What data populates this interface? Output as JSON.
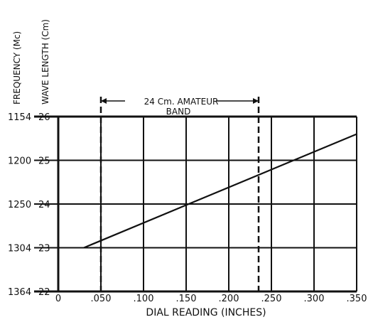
{
  "chart_data": {
    "type": "line",
    "title": "",
    "xlabel": "DIAL READING (INCHES)",
    "ylabel_left": "FREQUENCY (Mc)",
    "ylabel_right": "WAVE LENGTH (Cm)",
    "xlim": [
      0,
      0.35
    ],
    "x_ticks": [
      0,
      0.05,
      0.1,
      0.15,
      0.2,
      0.25,
      0.3,
      0.35
    ],
    "x_tick_labels": [
      "0",
      ".050",
      ".100",
      ".150",
      ".200",
      ".250",
      ".300",
      ".350"
    ],
    "ylim": [
      26,
      22
    ],
    "y_ticks": [
      {
        "wavelength": 26,
        "wavelength_label": "26",
        "frequency_label": "1154"
      },
      {
        "wavelength": 25,
        "wavelength_label": "25",
        "frequency_label": "1200"
      },
      {
        "wavelength": 24,
        "wavelength_label": "24",
        "frequency_label": "1250"
      },
      {
        "wavelength": 23,
        "wavelength_label": "23",
        "frequency_label": "1304"
      },
      {
        "wavelength": 22,
        "wavelength_label": "22",
        "frequency_label": "1364"
      }
    ],
    "grid": true,
    "series": [
      {
        "x": [
          0.03,
          0.35
        ],
        "y": [
          23.0,
          25.6
        ]
      }
    ],
    "annotation": {
      "line1": "24 Cm. AMATEUR",
      "line2": "BAND",
      "x_start": 0.05,
      "x_end": 0.235
    }
  }
}
